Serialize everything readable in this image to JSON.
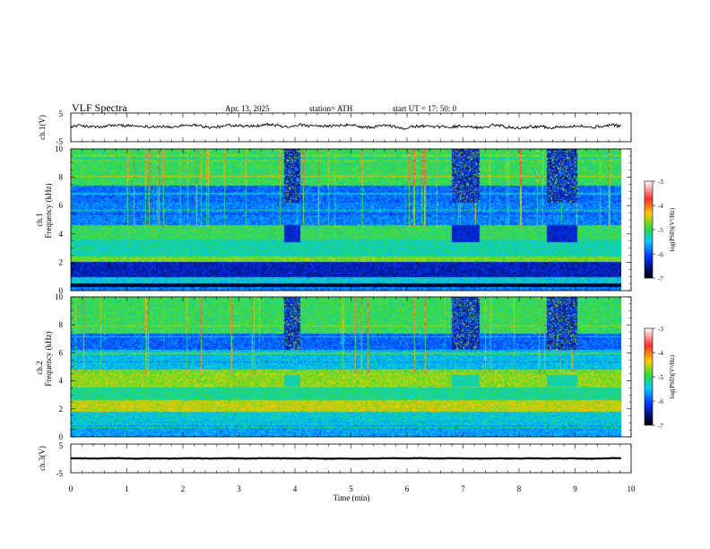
{
  "header": {
    "title": "VLF  Spectra",
    "date": "Apr. 13, 2025",
    "station": "station= ATH",
    "start": "start  UT  =    17: 50: 0"
  },
  "chart_data": [
    {
      "type": "line",
      "name": "ch1-waveform",
      "ylabel": "ch.1(V)",
      "ylim": [
        -5,
        5
      ],
      "yticks": [
        "5",
        "-5"
      ],
      "xlim": [
        0,
        10
      ],
      "baseline": 0.3,
      "noise_amplitude": 1.0
    },
    {
      "type": "heatmap",
      "name": "ch1-spectrogram",
      "ylabel": "ch.1\nFrequency  (kHz)",
      "ylim": [
        0,
        10
      ],
      "yticks": [
        "0",
        "2",
        "4",
        "6",
        "8",
        "10"
      ],
      "xlim": [
        0,
        10
      ],
      "colorbar": {
        "label": "log(PSD)(V²/Hz)",
        "ticks": [
          "-3",
          "-4",
          "-5",
          "-6",
          "-7"
        ],
        "range": [
          -7,
          -3
        ]
      },
      "dark_bursts_min": [
        [
          3.8,
          4.1
        ],
        [
          6.8,
          7.3
        ],
        [
          8.5,
          9.05
        ]
      ]
    },
    {
      "type": "heatmap",
      "name": "ch2-spectrogram",
      "ylabel": "ch.2\nFrequency  (kHz)",
      "ylim": [
        0,
        10
      ],
      "yticks": [
        "0",
        "2",
        "4",
        "6",
        "8",
        "10"
      ],
      "xlim": [
        0,
        10
      ],
      "colorbar": {
        "label": "log(PSD)(V²/Hz)",
        "ticks": [
          "-3",
          "-4",
          "-5",
          "-6",
          "-7"
        ],
        "range": [
          -7,
          -3
        ]
      },
      "dark_bursts_min": [
        [
          3.8,
          4.1
        ],
        [
          6.8,
          7.3
        ],
        [
          8.5,
          9.05
        ]
      ]
    },
    {
      "type": "line",
      "name": "ch3-waveform",
      "ylabel": "ch.3(V)",
      "ylim": [
        -5,
        5
      ],
      "yticks": [
        "5",
        "-5"
      ],
      "xlim": [
        0,
        10
      ],
      "baseline": 0.0,
      "noise_amplitude": 0.15
    }
  ],
  "xaxis": {
    "label": "Time  (min)",
    "ticks": [
      "0",
      "1",
      "2",
      "3",
      "4",
      "5",
      "6",
      "7",
      "8",
      "9",
      "10"
    ]
  }
}
